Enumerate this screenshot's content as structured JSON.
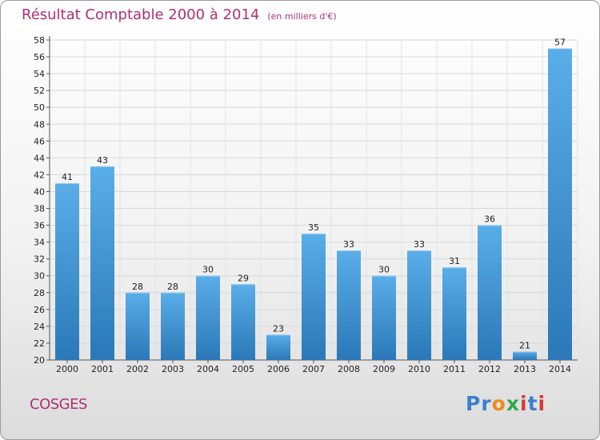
{
  "header": {
    "title": "Résultat Comptable 2000 à 2014",
    "subtitle": "(en milliers d'€)"
  },
  "footer": {
    "commune": "COSGES",
    "logo_text": "Proxiti"
  },
  "colors": {
    "title": "#b03070",
    "bar_top": "#5aaee8",
    "bar_bottom": "#2a78b8"
  },
  "chart_data": {
    "type": "bar",
    "title": "Résultat Comptable 2000 à 2014",
    "subtitle": "(en milliers d'€)",
    "categories": [
      "2000",
      "2001",
      "2002",
      "2003",
      "2004",
      "2005",
      "2006",
      "2007",
      "2008",
      "2009",
      "2010",
      "2011",
      "2012",
      "2013",
      "2014"
    ],
    "values": [
      41,
      43,
      28,
      28,
      30,
      29,
      23,
      35,
      33,
      30,
      33,
      31,
      36,
      21,
      57
    ],
    "ylim": [
      20,
      58
    ],
    "yticks": [
      20,
      22,
      24,
      26,
      28,
      30,
      32,
      34,
      36,
      38,
      40,
      42,
      44,
      46,
      48,
      50,
      52,
      54,
      56,
      58
    ],
    "grid": true,
    "data_labels": true
  }
}
